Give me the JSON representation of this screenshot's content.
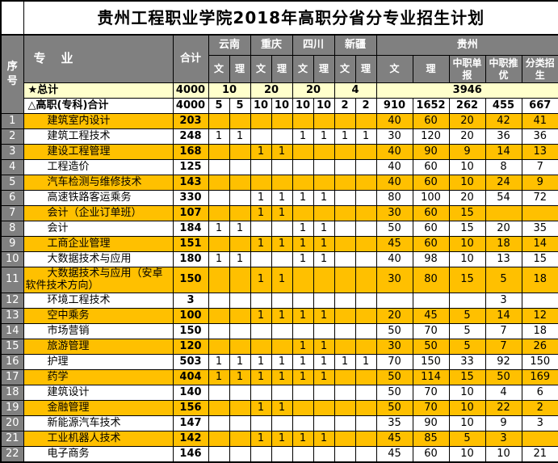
{
  "title": "贵州工程职业学院2018年高职分省分专业招生计划",
  "header": {
    "index_label": "序号",
    "major_label": "专　业",
    "total_label": "合计",
    "provinces": [
      {
        "name": "云南",
        "cols": [
          "文",
          "理"
        ]
      },
      {
        "name": "重庆",
        "cols": [
          "文",
          "理"
        ]
      },
      {
        "name": "四川",
        "cols": [
          "文",
          "理"
        ]
      },
      {
        "name": "新疆",
        "cols": [
          "文",
          "理"
        ]
      },
      {
        "name": "贵州",
        "cols": [
          "文",
          "理",
          "中职单报",
          "中职推优",
          "分类招生"
        ]
      }
    ]
  },
  "summary": {
    "grand_total": {
      "label": "★总计",
      "total": "4000",
      "merged": [
        "10",
        "20",
        "20",
        "4",
        "3946"
      ]
    },
    "subtotal": {
      "label": "△高职(专科)合计",
      "total": "4000",
      "cells": [
        "5",
        "5",
        "10",
        "10",
        "10",
        "10",
        "2",
        "2",
        "910",
        "1652",
        "262",
        "455",
        "667"
      ]
    }
  },
  "rows": [
    {
      "no": "1",
      "major": "建筑室内设计",
      "total": "203",
      "cells": [
        "",
        "",
        "",
        "",
        "",
        "",
        "",
        "",
        "40",
        "60",
        "20",
        "42",
        "41"
      ],
      "highlight": true,
      "tall": false
    },
    {
      "no": "2",
      "major": "建筑工程技术",
      "total": "248",
      "cells": [
        "1",
        "1",
        "",
        "",
        "1",
        "1",
        "1",
        "1",
        "30",
        "120",
        "20",
        "36",
        "36"
      ],
      "highlight": false,
      "tall": false
    },
    {
      "no": "3",
      "major": "建设工程管理",
      "total": "168",
      "cells": [
        "",
        "",
        "1",
        "1",
        "",
        "",
        "",
        "",
        "40",
        "90",
        "9",
        "14",
        "13"
      ],
      "highlight": true,
      "tall": false
    },
    {
      "no": "4",
      "major": "工程造价",
      "total": "125",
      "cells": [
        "",
        "",
        "",
        "",
        "",
        "",
        "",
        "",
        "40",
        "60",
        "10",
        "8",
        "7"
      ],
      "highlight": false,
      "tall": false
    },
    {
      "no": "5",
      "major": "汽车检测与维修技术",
      "total": "143",
      "cells": [
        "",
        "",
        "",
        "",
        "",
        "",
        "",
        "",
        "40",
        "60",
        "10",
        "24",
        "9"
      ],
      "highlight": true,
      "tall": false
    },
    {
      "no": "6",
      "major": "高速铁路客运乘务",
      "total": "330",
      "cells": [
        "",
        "",
        "1",
        "1",
        "1",
        "1",
        "",
        "",
        "80",
        "100",
        "20",
        "54",
        "72"
      ],
      "highlight": false,
      "tall": false
    },
    {
      "no": "7",
      "major": "会计（企业订单班）",
      "total": "107",
      "cells": [
        "",
        "",
        "1",
        "1",
        "",
        "",
        "",
        "",
        "30",
        "60",
        "15",
        "",
        ""
      ],
      "highlight": true,
      "tall": false
    },
    {
      "no": "8",
      "major": "会计",
      "total": "184",
      "cells": [
        "1",
        "1",
        "",
        "",
        "1",
        "1",
        "",
        "",
        "50",
        "60",
        "15",
        "20",
        "35"
      ],
      "highlight": false,
      "tall": false
    },
    {
      "no": "9",
      "major": "工商企业管理",
      "total": "151",
      "cells": [
        "",
        "",
        "1",
        "1",
        "1",
        "1",
        "",
        "",
        "45",
        "60",
        "10",
        "18",
        "14"
      ],
      "highlight": true,
      "tall": false
    },
    {
      "no": "10",
      "major": "大数据技术与应用",
      "total": "180",
      "cells": [
        "1",
        "1",
        "",
        "",
        "1",
        "1",
        "",
        "",
        "40",
        "98",
        "10",
        "13",
        "15"
      ],
      "highlight": false,
      "tall": false
    },
    {
      "no": "11",
      "major": "大数据技术与应用（安卓软件技术方向）",
      "total": "150",
      "cells": [
        "",
        "",
        "1",
        "1",
        "",
        "",
        "",
        "",
        "30",
        "80",
        "15",
        "5",
        "18"
      ],
      "highlight": true,
      "tall": true
    },
    {
      "no": "12",
      "major": "环境工程技术",
      "total": "3",
      "cells": [
        "",
        "",
        "",
        "",
        "",
        "",
        "",
        "",
        "",
        "",
        "",
        "3",
        ""
      ],
      "highlight": false,
      "tall": false
    },
    {
      "no": "13",
      "major": "空中乘务",
      "total": "100",
      "cells": [
        "",
        "",
        "1",
        "1",
        "1",
        "1",
        "",
        "",
        "20",
        "45",
        "5",
        "14",
        "12"
      ],
      "highlight": true,
      "tall": false
    },
    {
      "no": "14",
      "major": "市场营销",
      "total": "150",
      "cells": [
        "",
        "",
        "",
        "",
        "",
        "",
        "",
        "",
        "50",
        "70",
        "5",
        "7",
        "18"
      ],
      "highlight": false,
      "tall": false
    },
    {
      "no": "15",
      "major": "旅游管理",
      "total": "120",
      "cells": [
        "",
        "",
        "",
        "",
        "1",
        "1",
        "",
        "",
        "30",
        "50",
        "5",
        "7",
        "26"
      ],
      "highlight": true,
      "tall": false
    },
    {
      "no": "16",
      "major": "护理",
      "total": "503",
      "cells": [
        "1",
        "1",
        "1",
        "1",
        "1",
        "1",
        "1",
        "1",
        "70",
        "150",
        "33",
        "92",
        "150"
      ],
      "highlight": false,
      "tall": false
    },
    {
      "no": "17",
      "major": "药学",
      "total": "404",
      "cells": [
        "1",
        "1",
        "1",
        "1",
        "1",
        "1",
        "",
        "",
        "50",
        "114",
        "15",
        "50",
        "169"
      ],
      "highlight": true,
      "tall": false
    },
    {
      "no": "18",
      "major": "建筑设计",
      "total": "140",
      "cells": [
        "",
        "",
        "",
        "",
        "",
        "",
        "",
        "",
        "50",
        "70",
        "10",
        "4",
        "6"
      ],
      "highlight": false,
      "tall": false
    },
    {
      "no": "19",
      "major": "金融管理",
      "total": "156",
      "cells": [
        "",
        "",
        "1",
        "1",
        "",
        "",
        "",
        "",
        "50",
        "70",
        "10",
        "22",
        "2"
      ],
      "highlight": true,
      "tall": false
    },
    {
      "no": "20",
      "major": "新能源汽车技术",
      "total": "147",
      "cells": [
        "",
        "",
        "",
        "",
        "",
        "",
        "",
        "",
        "35",
        "90",
        "10",
        "9",
        "3"
      ],
      "highlight": false,
      "tall": false
    },
    {
      "no": "21",
      "major": "工业机器人技术",
      "total": "142",
      "cells": [
        "",
        "",
        "1",
        "1",
        "1",
        "1",
        "",
        "",
        "45",
        "85",
        "5",
        "3",
        ""
      ],
      "highlight": true,
      "tall": false
    },
    {
      "no": "22",
      "major": "电子商务",
      "total": "146",
      "cells": [
        "",
        "",
        "",
        "",
        "",
        "",
        "",
        "",
        "45",
        "60",
        "10",
        "10",
        "21"
      ],
      "highlight": false,
      "tall": false
    }
  ],
  "colors": {
    "header_bg": "#808080",
    "header_text": "#ffffff",
    "highlight_row": "#ffc000",
    "grand_total_bg": "#ffffcc",
    "border": "#000000"
  }
}
